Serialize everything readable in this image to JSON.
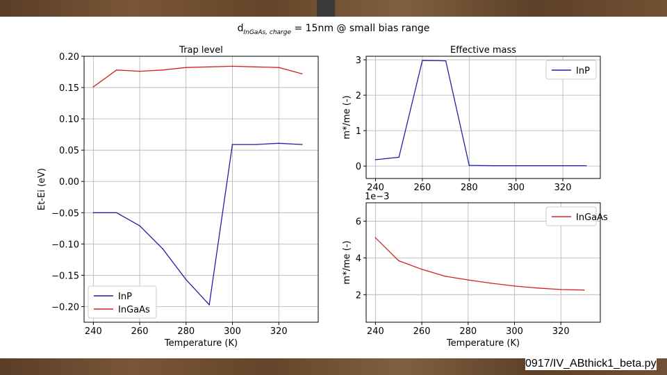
{
  "suptitle": "d",
  "suptitle_sub": "InGaAs, charge",
  "suptitle_rest": " = 15nm @ small bias range",
  "caption": "0917/IV_ABthick1_beta.py",
  "colors": {
    "inp": "#1f1fa8",
    "ingaas": "#d62020",
    "grid": "#b0b0b0"
  },
  "chart_data": [
    {
      "type": "line",
      "title": "Trap level",
      "xlabel": "Temperature (K)",
      "ylabel": "Et-Ei (eV)",
      "xlim": [
        236,
        337
      ],
      "ylim": [
        -0.225,
        0.2
      ],
      "xticks": [
        240,
        260,
        280,
        300,
        320
      ],
      "yticks": [
        0.2,
        0.15,
        0.1,
        0.05,
        0.0,
        -0.05,
        -0.1,
        -0.15,
        -0.2
      ],
      "ytick_labels": [
        "0.20",
        "0.15",
        "0.10",
        "0.05",
        "0.00",
        "−0.05",
        "−0.10",
        "−0.15",
        "−0.20"
      ],
      "legend": "lower-left",
      "series": [
        {
          "name": "InP",
          "color": "#1f1fa8",
          "x": [
            240,
            250,
            260,
            270,
            280,
            290,
            300,
            310,
            320,
            330
          ],
          "y": [
            -0.05,
            -0.05,
            -0.071,
            -0.108,
            -0.157,
            -0.197,
            0.059,
            0.059,
            0.061,
            0.059
          ]
        },
        {
          "name": "InGaAs",
          "color": "#d62020",
          "x": [
            240,
            250,
            260,
            270,
            280,
            290,
            300,
            310,
            320,
            330
          ],
          "y": [
            0.151,
            0.178,
            0.176,
            0.178,
            0.182,
            0.183,
            0.184,
            0.183,
            0.182,
            0.172
          ]
        }
      ]
    },
    {
      "type": "line",
      "title": "Effective mass",
      "xlabel": "",
      "ylabel": "m*/me (-)",
      "xlim": [
        236,
        336
      ],
      "ylim": [
        -0.35,
        3.1
      ],
      "xticks": [
        240,
        260,
        280,
        300,
        320
      ],
      "yticks": [
        0,
        1,
        2,
        3
      ],
      "ytick_labels": [
        "0",
        "1",
        "2",
        "3"
      ],
      "legend": "top-right",
      "series": [
        {
          "name": "InP",
          "color": "#1f1fa8",
          "x": [
            240,
            250,
            260,
            270,
            280,
            290,
            300,
            310,
            320,
            330
          ],
          "y": [
            0.18,
            0.25,
            2.98,
            2.97,
            0.02,
            0.01,
            0.01,
            0.01,
            0.01,
            0.01
          ]
        }
      ]
    },
    {
      "type": "line",
      "title": "",
      "xlabel": "Temperature (K)",
      "ylabel": "m*/me (-)",
      "scale_label": "1e−3",
      "xlim": [
        236,
        337
      ],
      "ylim": [
        0.5,
        7.0
      ],
      "xticks": [
        240,
        260,
        280,
        300,
        320
      ],
      "yticks": [
        2,
        4,
        6
      ],
      "ytick_labels": [
        "2",
        "4",
        "6"
      ],
      "legend": "top-right",
      "series": [
        {
          "name": "InGaAs",
          "color": "#d62020",
          "x": [
            240,
            250,
            260,
            270,
            280,
            290,
            300,
            310,
            320,
            330
          ],
          "y": [
            5.1,
            3.85,
            3.38,
            3.0,
            2.8,
            2.62,
            2.47,
            2.36,
            2.28,
            2.25
          ]
        }
      ]
    }
  ]
}
